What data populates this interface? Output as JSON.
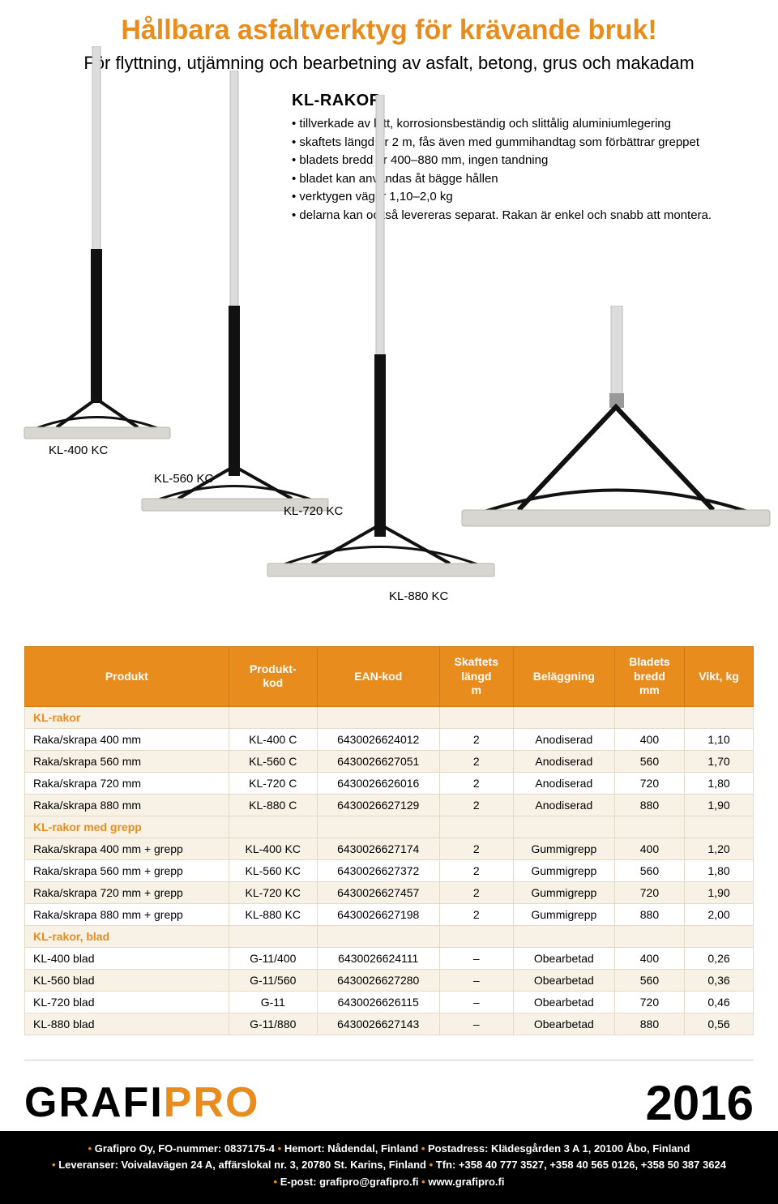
{
  "colors": {
    "accent": "#e88c1e",
    "text": "#000000",
    "table_header_bg": "#e88c1e",
    "table_header_fg": "#ffffff",
    "row_alt": "#f8f1e5",
    "footer_bg": "#000000",
    "footer_fg": "#ffffff"
  },
  "header": {
    "title": "Hållbara asfaltverktyg för krävande bruk!",
    "subtitle": "För flyttning, utjämning och bearbetning av asfalt, betong, grus och makadam"
  },
  "section": {
    "heading": "KL-RAKOR",
    "bullets": [
      "tillverkade av lätt, korrosionsbeständig och slittålig aluminiumlegering",
      "skaftets längd är 2 m, fås även med gummihandtag som förbättrar greppet",
      "bladets bredd är 400–880 mm, ingen tandning",
      "bladet kan användas åt bägge hållen",
      "verktygen väger 1,10–2,0 kg",
      "delarna kan också levereras separat. Rakan är enkel och snabb att montera."
    ]
  },
  "product_labels": [
    "KL-400 KC",
    "KL-560 KC",
    "KL-720 KC",
    "KL-880 KC"
  ],
  "table": {
    "columns": [
      "Produkt",
      "Produkt-\nkod",
      "EAN-kod",
      "Skaftets\nlängd\nm",
      "Beläggning",
      "Bladets\nbredd\nmm",
      "Vikt, kg"
    ],
    "groups": [
      {
        "label": "KL-rakor",
        "rows": [
          [
            "Raka/skrapa 400 mm",
            "KL-400 C",
            "6430026624012",
            "2",
            "Anodiserad",
            "400",
            "1,10"
          ],
          [
            "Raka/skrapa 560 mm",
            "KL-560 C",
            "6430026627051",
            "2",
            "Anodiserad",
            "560",
            "1,70"
          ],
          [
            "Raka/skrapa 720 mm",
            "KL-720 C",
            "6430026626016",
            "2",
            "Anodiserad",
            "720",
            "1,80"
          ],
          [
            "Raka/skrapa 880 mm",
            "KL-880 C",
            "6430026627129",
            "2",
            "Anodiserad",
            "880",
            "1,90"
          ]
        ]
      },
      {
        "label": "KL-rakor med grepp",
        "rows": [
          [
            "Raka/skrapa 400 mm + grepp",
            "KL-400 KC",
            "6430026627174",
            "2",
            "Gummigrepp",
            "400",
            "1,20"
          ],
          [
            "Raka/skrapa 560 mm + grepp",
            "KL-560 KC",
            "6430026627372",
            "2",
            "Gummigrepp",
            "560",
            "1,80"
          ],
          [
            "Raka/skrapa 720 mm + grepp",
            "KL-720 KC",
            "6430026627457",
            "2",
            "Gummigrepp",
            "720",
            "1,90"
          ],
          [
            "Raka/skrapa 880 mm + grepp",
            "KL-880 KC",
            "6430026627198",
            "2",
            "Gummigrepp",
            "880",
            "2,00"
          ]
        ]
      },
      {
        "label": "KL-rakor, blad",
        "rows": [
          [
            "KL-400 blad",
            "G-11/400",
            "6430026624111",
            "–",
            "Obearbetad",
            "400",
            "0,26"
          ],
          [
            "KL-560 blad",
            "G-11/560",
            "6430026627280",
            "–",
            "Obearbetad",
            "560",
            "0,36"
          ],
          [
            "KL-720 blad",
            "G-11",
            "6430026626115",
            "–",
            "Obearbetad",
            "720",
            "0,46"
          ],
          [
            "KL-880 blad",
            "G-11/880",
            "6430026627143",
            "–",
            "Obearbetad",
            "880",
            "0,56"
          ]
        ]
      }
    ]
  },
  "brand": {
    "part1": "GRAFI",
    "part2": "PRO",
    "year": "2016"
  },
  "footer": {
    "line1": "Grafipro Oy, FO-nummer: 0837175-4 • Hemort: Nådendal, Finland • Postadress: Klädesgården 3 A 1, 20100 Åbo, Finland",
    "line2": "Leveranser: Voivalavägen 24 A, affärslokal nr. 3, 20780 St. Karins, Finland • Tfn: +358 40 777 3527, +358 40 565 0126, +358 50 387 3624",
    "line3": "E-post: grafipro@grafipro.fi • www.grafipro.fi"
  },
  "rake_style": {
    "shaft_silver": "#dcdcdc",
    "grip_black": "#111111",
    "blade_silver": "#d8d6d0",
    "support_black": "#111111"
  }
}
